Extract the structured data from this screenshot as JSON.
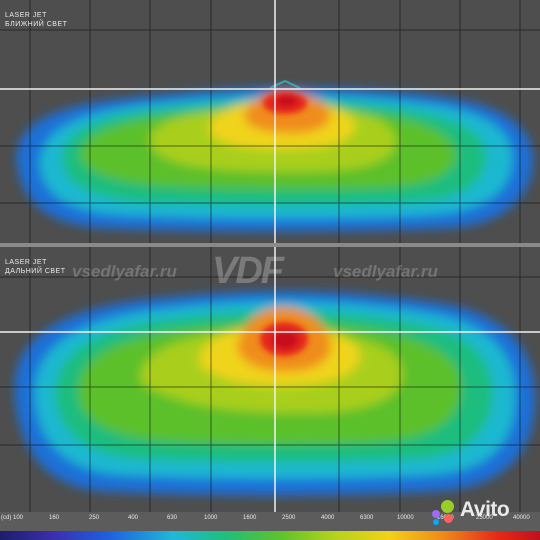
{
  "panels": [
    {
      "line1": "LASER JET",
      "line2": "БЛИЖНИЙ СВЕТ"
    },
    {
      "line1": "LASER JET",
      "line2": "ДАЛЬНИЙ СВЕТ"
    }
  ],
  "watermark": {
    "site_left": "vsedlyafar.ru",
    "logo": "VDF",
    "site_right": "vsedlyafar.ru"
  },
  "scale": {
    "ticks": [
      "(cd) 100",
      "160",
      "250",
      "400",
      "630",
      "1000",
      "1600",
      "2500",
      "4000",
      "6300",
      "10000",
      "16000",
      "25000",
      "40000"
    ]
  },
  "brand": {
    "name": "Avito",
    "dot_colors": [
      "#97cf26",
      "#a169f7",
      "#ff6163",
      "#0af"
    ]
  }
}
